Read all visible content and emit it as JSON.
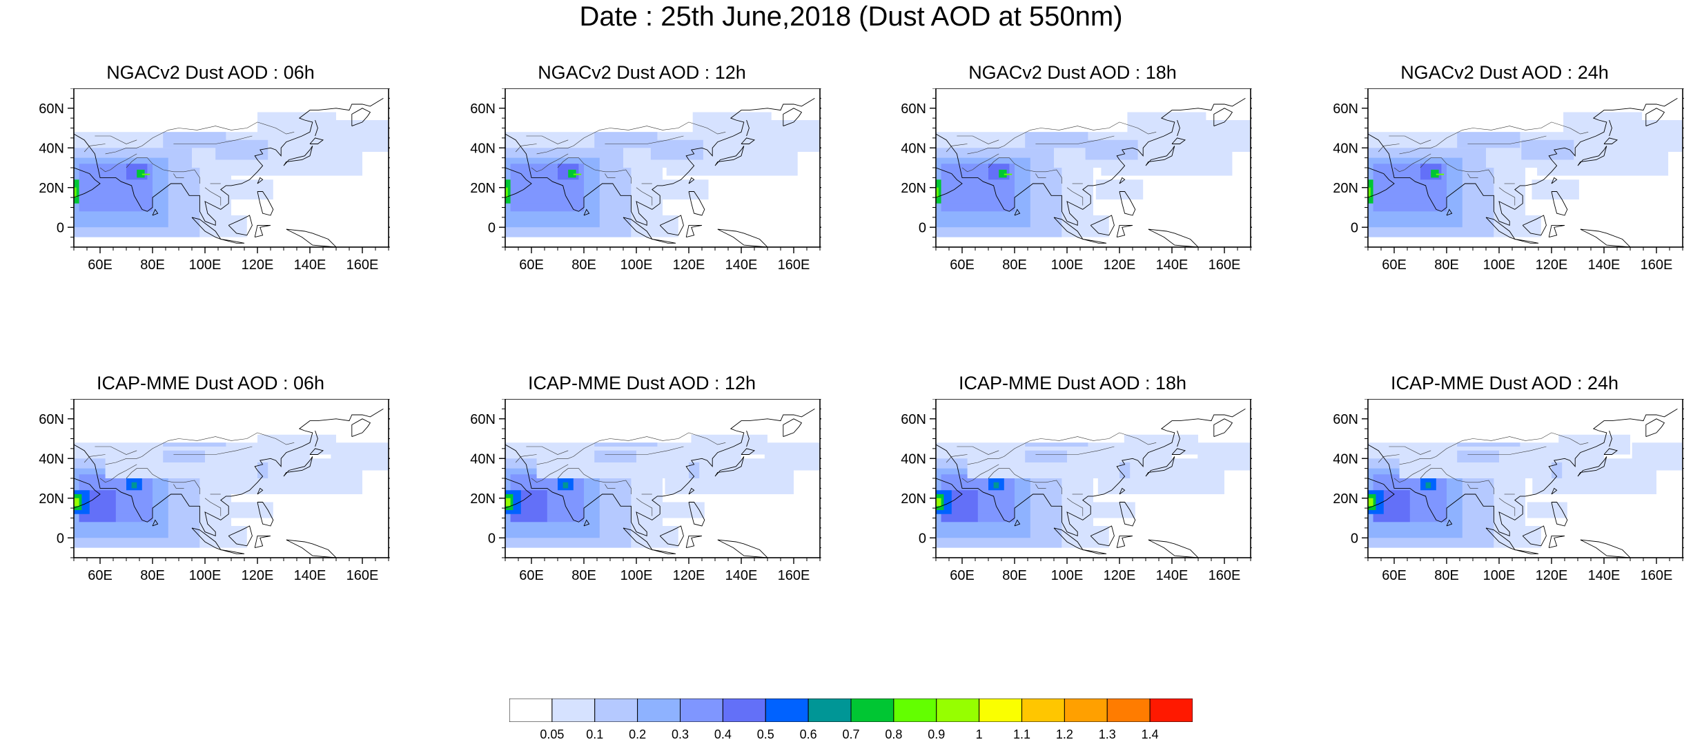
{
  "title": "Date : 25th June,2018 (Dust AOD at 550nm)",
  "panels": [
    {
      "title": "NGACv2 Dust AOD : 06h",
      "model": "ngac",
      "idx": 0
    },
    {
      "title": "NGACv2 Dust AOD : 12h",
      "model": "ngac",
      "idx": 1
    },
    {
      "title": "NGACv2 Dust AOD : 18h",
      "model": "ngac",
      "idx": 2
    },
    {
      "title": "NGACv2 Dust AOD : 24h",
      "model": "ngac",
      "idx": 3
    },
    {
      "title": "ICAP-MME Dust AOD : 06h",
      "model": "icap",
      "idx": 0
    },
    {
      "title": "ICAP-MME Dust AOD : 12h",
      "model": "icap",
      "idx": 1
    },
    {
      "title": "ICAP-MME Dust AOD : 18h",
      "model": "icap",
      "idx": 2
    },
    {
      "title": "ICAP-MME Dust AOD : 24h",
      "model": "icap",
      "idx": 3
    }
  ],
  "map": {
    "lon_range": [
      50,
      170
    ],
    "lat_range": [
      -10,
      70
    ],
    "lon_ticks": [
      60,
      80,
      100,
      120,
      140,
      160
    ],
    "lon_tick_labels": [
      "60E",
      "80E",
      "100E",
      "120E",
      "140E",
      "160E"
    ],
    "lat_ticks": [
      0,
      20,
      40,
      60
    ],
    "lat_tick_labels": [
      "0",
      "20N",
      "40N",
      "60N"
    ]
  },
  "colorbar": {
    "colors": [
      "#ffffff",
      "#d6e2ff",
      "#b5c9ff",
      "#8eb2ff",
      "#7f96ff",
      "#6370f8",
      "#0062ff",
      "#009696",
      "#00c633",
      "#63ff00",
      "#96ff00",
      "#faff00",
      "#ffc600",
      "#ffa000",
      "#ff7c00",
      "#ff1900"
    ],
    "labels": [
      "0.05",
      "0.1",
      "0.2",
      "0.3",
      "0.4",
      "0.5",
      "0.6",
      "0.7",
      "0.8",
      "0.9",
      "1",
      "1.1",
      "1.2",
      "1.3",
      "1.4"
    ]
  }
}
